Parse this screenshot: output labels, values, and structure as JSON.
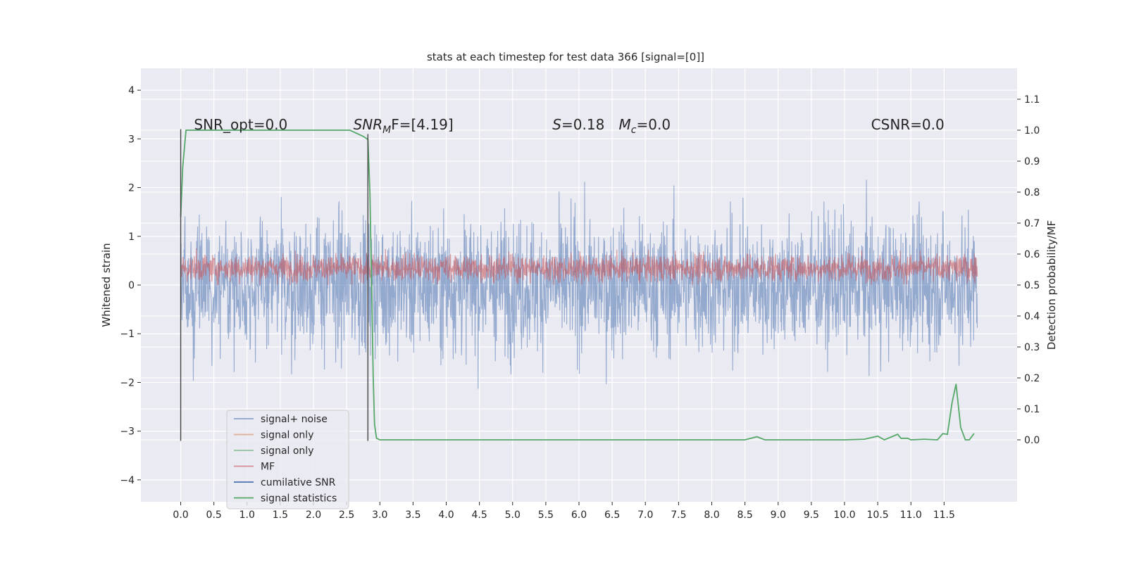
{
  "chart_data": {
    "type": "line",
    "title": "stats at each timestep for test data 366 [signal=[0]]",
    "ylabel": "Whitened strain",
    "ylabel_right": "Detection probability/MF",
    "xlim": [
      -0.6,
      12.6
    ],
    "ylim": [
      -4.45,
      4.45
    ],
    "ylim_right": [
      -0.2,
      1.2
    ],
    "x_ticks": [
      "0.0",
      "0.5",
      "1.0",
      "1.5",
      "2.0",
      "2.5",
      "3.0",
      "3.5",
      "4.0",
      "4.5",
      "5.0",
      "5.5",
      "6.0",
      "6.5",
      "7.0",
      "7.5",
      "8.0",
      "8.5",
      "9.0",
      "9.5",
      "10.0",
      "10.5",
      "11.0",
      "11.5"
    ],
    "y_ticks": [
      -4,
      -3,
      -2,
      -1,
      0,
      1,
      2,
      3,
      4
    ],
    "y_tick_labels": [
      "−4",
      "−3",
      "−2",
      "−1",
      "0",
      "1",
      "2",
      "3",
      "4"
    ],
    "y_right_ticks": [
      "0.0",
      "0.1",
      "0.2",
      "0.3",
      "0.4",
      "0.5",
      "0.6",
      "0.7",
      "0.8",
      "0.9",
      "1.0",
      "1.1"
    ],
    "grid": true,
    "legend_position": "lower-left",
    "annotations": [
      {
        "x": 0.2,
        "y_right": 1.0,
        "text": "SNR_opt=0.0"
      },
      {
        "x": 2.6,
        "y_right": 1.0,
        "text": "SNR",
        "sub": "M",
        "rest": "F=[4.19]"
      },
      {
        "x": 5.6,
        "y_right": 1.0,
        "text": "S",
        "rest": "=0.18"
      },
      {
        "x": 6.6,
        "y_right": 1.0,
        "text": "M",
        "sub": "c",
        "rest": "=0.0"
      },
      {
        "x": 10.4,
        "y_right": 1.0,
        "text": "CSNR=0.0"
      }
    ],
    "vertical_lines": [
      {
        "x": 0.0,
        "y": [
          -3.2,
          3.2
        ]
      },
      {
        "x": 2.82,
        "y": [
          -3.2,
          3.1
        ]
      }
    ],
    "series": [
      {
        "name": "signal+ noise",
        "color": "#4c72b0",
        "axis": "left",
        "kind": "noise",
        "range": [
          0.0,
          12.0
        ]
      },
      {
        "name": "signal only",
        "color": "#dd8452",
        "axis": "left",
        "kind": "flat"
      },
      {
        "name": "signal only",
        "color": "#55a868",
        "axis": "left",
        "kind": "flat"
      },
      {
        "name": "MF",
        "color": "#c44e52",
        "axis": "left",
        "kind": "band",
        "range": [
          0.0,
          12.0
        ],
        "band": [
          0.0,
          0.9
        ]
      },
      {
        "name": "cumilative SNR",
        "color": "#4c72b0",
        "axis": "left",
        "kind": "flat"
      },
      {
        "name": "signal statistics",
        "color": "#55a868",
        "axis": "right",
        "kind": "line",
        "x": [
          0.0,
          0.03,
          0.08,
          0.5,
          1.0,
          1.5,
          2.0,
          2.4,
          2.55,
          2.65,
          2.75,
          2.82,
          2.85,
          2.88,
          2.9,
          2.92,
          2.95,
          3.0,
          3.5,
          4.0,
          4.5,
          5.0,
          5.5,
          6.0,
          6.5,
          7.0,
          7.5,
          8.0,
          8.5,
          8.68,
          8.8,
          9.0,
          9.5,
          10.0,
          10.3,
          10.5,
          10.6,
          10.8,
          10.85,
          10.95,
          11.0,
          11.2,
          11.4,
          11.48,
          11.55,
          11.62,
          11.68,
          11.75,
          11.82,
          11.88,
          11.95
        ],
        "y": [
          0.72,
          0.88,
          1.0,
          1.0,
          1.0,
          1.0,
          1.0,
          1.0,
          1.0,
          0.99,
          0.98,
          0.97,
          0.8,
          0.45,
          0.2,
          0.05,
          0.005,
          0.0,
          0.0,
          0.0,
          0.0,
          0.0,
          0.0,
          0.0,
          0.0,
          0.0,
          0.0,
          0.0,
          0.0,
          0.01,
          0.0,
          0.0,
          0.0,
          0.0,
          0.002,
          0.012,
          0.0,
          0.018,
          0.005,
          0.005,
          0.0,
          0.002,
          0.0,
          0.02,
          0.018,
          0.12,
          0.18,
          0.04,
          0.0,
          0.0,
          0.02
        ]
      }
    ]
  }
}
